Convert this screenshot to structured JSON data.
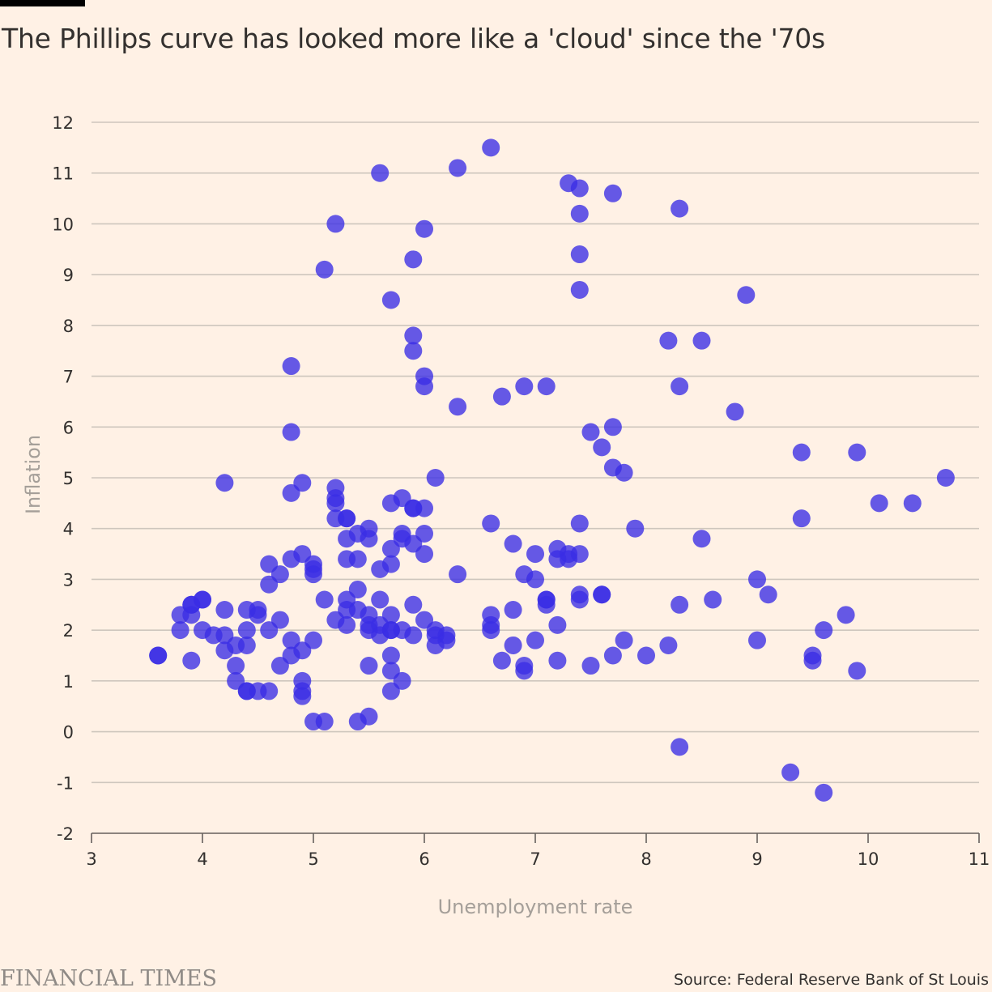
{
  "header": {
    "title": "The Phillips curve has looked more like a 'cloud' since the '70s"
  },
  "footer": {
    "brand": "FINANCIAL TIMES",
    "source": "Source: Federal Reserve Bank of St Louis"
  },
  "colors": {
    "background": "#fff1e5",
    "point": "#3a2de6",
    "gridline": "#cec6bd",
    "text": "#33302e",
    "axis_title": "#a59f99"
  },
  "chart_data": {
    "type": "scatter",
    "xlabel": "Unemployment rate",
    "ylabel": "Inflation",
    "xlim": [
      3,
      11
    ],
    "ylim": [
      -2,
      12
    ],
    "xticks": [
      3,
      4,
      5,
      6,
      7,
      8,
      9,
      10,
      11
    ],
    "yticks": [
      -2,
      -1,
      0,
      1,
      2,
      3,
      4,
      5,
      6,
      7,
      8,
      9,
      10,
      11,
      12
    ],
    "grid": "horizontal",
    "points": [
      [
        3.6,
        1.5
      ],
      [
        3.6,
        1.5
      ],
      [
        3.8,
        2.3
      ],
      [
        3.8,
        2.0
      ],
      [
        3.9,
        2.5
      ],
      [
        3.9,
        2.3
      ],
      [
        3.9,
        1.4
      ],
      [
        3.9,
        2.5
      ],
      [
        4.0,
        2.6
      ],
      [
        4.0,
        2.6
      ],
      [
        4.0,
        2.0
      ],
      [
        4.1,
        1.9
      ],
      [
        4.2,
        4.9
      ],
      [
        4.2,
        2.4
      ],
      [
        4.2,
        1.9
      ],
      [
        4.2,
        1.6
      ],
      [
        4.3,
        1.7
      ],
      [
        4.3,
        1.3
      ],
      [
        4.3,
        1.0
      ],
      [
        4.4,
        2.4
      ],
      [
        4.4,
        2.0
      ],
      [
        4.4,
        1.7
      ],
      [
        4.4,
        0.8
      ],
      [
        4.4,
        0.8
      ],
      [
        4.5,
        2.4
      ],
      [
        4.5,
        2.3
      ],
      [
        4.5,
        0.8
      ],
      [
        4.6,
        3.3
      ],
      [
        4.6,
        2.9
      ],
      [
        4.6,
        2.0
      ],
      [
        4.6,
        0.8
      ],
      [
        4.7,
        3.1
      ],
      [
        4.7,
        2.2
      ],
      [
        4.7,
        1.3
      ],
      [
        4.8,
        7.2
      ],
      [
        4.8,
        5.9
      ],
      [
        4.8,
        4.7
      ],
      [
        4.8,
        3.4
      ],
      [
        4.8,
        1.8
      ],
      [
        4.8,
        1.5
      ],
      [
        4.9,
        4.9
      ],
      [
        4.9,
        3.5
      ],
      [
        4.9,
        1.6
      ],
      [
        4.9,
        1.0
      ],
      [
        4.9,
        0.8
      ],
      [
        4.9,
        0.7
      ],
      [
        5.0,
        3.3
      ],
      [
        5.0,
        3.2
      ],
      [
        5.0,
        3.1
      ],
      [
        5.0,
        1.8
      ],
      [
        5.0,
        0.2
      ],
      [
        5.1,
        9.1
      ],
      [
        5.1,
        2.6
      ],
      [
        5.1,
        0.2
      ],
      [
        5.2,
        10.0
      ],
      [
        5.2,
        4.8
      ],
      [
        5.2,
        4.6
      ],
      [
        5.2,
        4.5
      ],
      [
        5.2,
        4.2
      ],
      [
        5.2,
        2.2
      ],
      [
        5.3,
        4.2
      ],
      [
        5.3,
        4.2
      ],
      [
        5.3,
        3.8
      ],
      [
        5.3,
        3.4
      ],
      [
        5.3,
        2.6
      ],
      [
        5.3,
        2.4
      ],
      [
        5.3,
        2.1
      ],
      [
        5.4,
        3.9
      ],
      [
        5.4,
        3.4
      ],
      [
        5.4,
        2.8
      ],
      [
        5.4,
        2.4
      ],
      [
        5.4,
        0.2
      ],
      [
        5.5,
        4.0
      ],
      [
        5.5,
        3.8
      ],
      [
        5.5,
        2.3
      ],
      [
        5.5,
        2.1
      ],
      [
        5.5,
        2.0
      ],
      [
        5.5,
        1.3
      ],
      [
        5.5,
        0.3
      ],
      [
        5.6,
        11.0
      ],
      [
        5.6,
        3.2
      ],
      [
        5.6,
        2.6
      ],
      [
        5.6,
        2.1
      ],
      [
        5.6,
        1.9
      ],
      [
        5.7,
        8.5
      ],
      [
        5.7,
        4.5
      ],
      [
        5.7,
        3.6
      ],
      [
        5.7,
        3.3
      ],
      [
        5.7,
        2.3
      ],
      [
        5.7,
        2.0
      ],
      [
        5.7,
        2.0
      ],
      [
        5.7,
        1.5
      ],
      [
        5.7,
        1.2
      ],
      [
        5.7,
        0.8
      ],
      [
        5.8,
        4.6
      ],
      [
        5.8,
        3.9
      ],
      [
        5.8,
        3.8
      ],
      [
        5.8,
        2.0
      ],
      [
        5.8,
        1.0
      ],
      [
        5.9,
        9.3
      ],
      [
        5.9,
        7.8
      ],
      [
        5.9,
        7.5
      ],
      [
        5.9,
        4.4
      ],
      [
        5.9,
        4.4
      ],
      [
        5.9,
        3.7
      ],
      [
        5.9,
        2.5
      ],
      [
        5.9,
        1.9
      ],
      [
        6.0,
        9.9
      ],
      [
        6.0,
        7.0
      ],
      [
        6.0,
        6.8
      ],
      [
        6.0,
        4.4
      ],
      [
        6.0,
        3.9
      ],
      [
        6.0,
        3.5
      ],
      [
        6.0,
        2.2
      ],
      [
        6.1,
        5.0
      ],
      [
        6.1,
        2.0
      ],
      [
        6.1,
        1.9
      ],
      [
        6.1,
        1.7
      ],
      [
        6.2,
        1.9
      ],
      [
        6.2,
        1.8
      ],
      [
        6.3,
        11.1
      ],
      [
        6.3,
        6.4
      ],
      [
        6.3,
        3.1
      ],
      [
        6.6,
        11.5
      ],
      [
        6.6,
        4.1
      ],
      [
        6.6,
        2.3
      ],
      [
        6.6,
        2.1
      ],
      [
        6.6,
        2.0
      ],
      [
        6.7,
        6.6
      ],
      [
        6.7,
        1.4
      ],
      [
        6.8,
        3.7
      ],
      [
        6.8,
        2.4
      ],
      [
        6.8,
        1.7
      ],
      [
        6.9,
        6.8
      ],
      [
        6.9,
        3.1
      ],
      [
        6.9,
        1.3
      ],
      [
        6.9,
        1.2
      ],
      [
        7.0,
        3.5
      ],
      [
        7.0,
        3.0
      ],
      [
        7.0,
        1.8
      ],
      [
        7.1,
        6.8
      ],
      [
        7.1,
        2.6
      ],
      [
        7.1,
        2.6
      ],
      [
        7.1,
        2.5
      ],
      [
        7.2,
        3.6
      ],
      [
        7.2,
        3.4
      ],
      [
        7.2,
        2.1
      ],
      [
        7.2,
        1.4
      ],
      [
        7.3,
        10.8
      ],
      [
        7.3,
        3.5
      ],
      [
        7.3,
        3.4
      ],
      [
        7.4,
        10.7
      ],
      [
        7.4,
        10.2
      ],
      [
        7.4,
        9.4
      ],
      [
        7.4,
        8.7
      ],
      [
        7.4,
        4.1
      ],
      [
        7.4,
        3.5
      ],
      [
        7.4,
        2.7
      ],
      [
        7.4,
        2.6
      ],
      [
        7.5,
        5.9
      ],
      [
        7.5,
        1.3
      ],
      [
        7.6,
        5.6
      ],
      [
        7.6,
        2.7
      ],
      [
        7.6,
        2.7
      ],
      [
        7.7,
        10.6
      ],
      [
        7.7,
        6.0
      ],
      [
        7.7,
        5.2
      ],
      [
        7.7,
        1.5
      ],
      [
        7.8,
        5.1
      ],
      [
        7.8,
        1.8
      ],
      [
        7.9,
        4.0
      ],
      [
        8.0,
        1.5
      ],
      [
        8.2,
        7.7
      ],
      [
        8.2,
        1.7
      ],
      [
        8.3,
        10.3
      ],
      [
        8.3,
        6.8
      ],
      [
        8.3,
        2.5
      ],
      [
        8.3,
        -0.3
      ],
      [
        8.5,
        7.7
      ],
      [
        8.5,
        3.8
      ],
      [
        8.6,
        2.6
      ],
      [
        8.8,
        6.3
      ],
      [
        8.9,
        8.6
      ],
      [
        9.0,
        3.0
      ],
      [
        9.0,
        1.8
      ],
      [
        9.1,
        2.7
      ],
      [
        9.3,
        -0.8
      ],
      [
        9.4,
        5.5
      ],
      [
        9.4,
        4.2
      ],
      [
        9.5,
        1.5
      ],
      [
        9.5,
        1.4
      ],
      [
        9.6,
        2.0
      ],
      [
        9.6,
        -1.2
      ],
      [
        9.8,
        2.3
      ],
      [
        9.9,
        5.5
      ],
      [
        9.9,
        1.2
      ],
      [
        10.1,
        4.5
      ],
      [
        10.4,
        4.5
      ],
      [
        10.7,
        5.0
      ]
    ]
  }
}
